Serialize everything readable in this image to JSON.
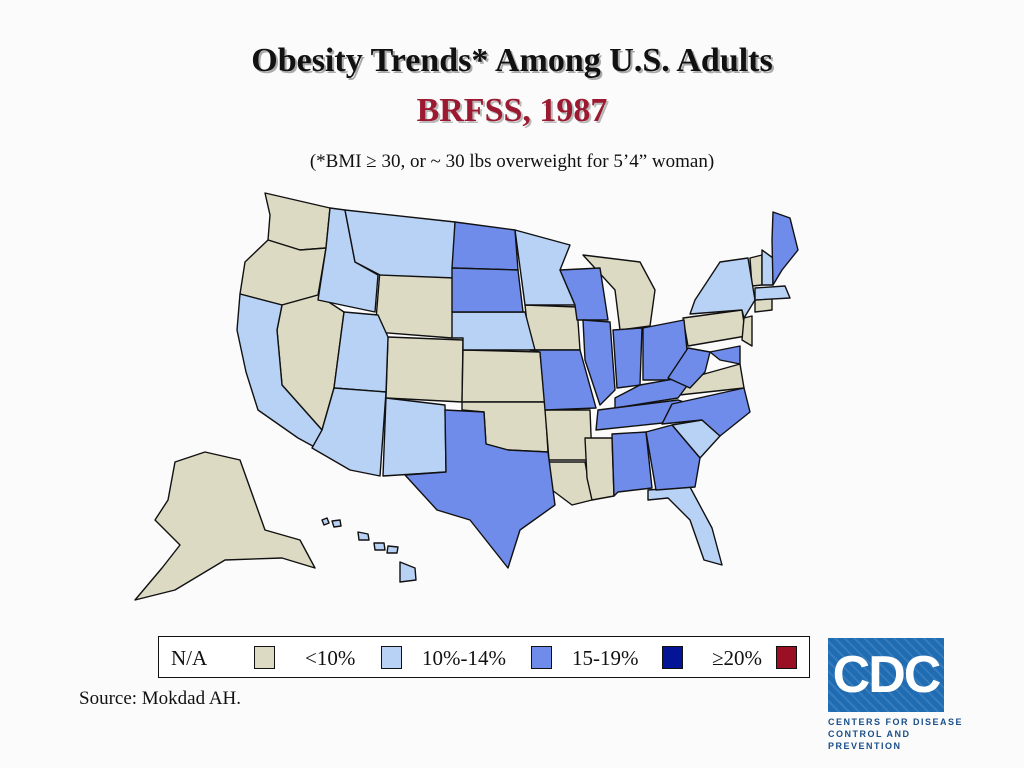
{
  "title": "Obesity Trends* Among U.S. Adults",
  "subtitle": "BRFSS, 1987",
  "note": "(*BMI ≥ 30, or ~ 30 lbs overweight for 5’4” woman)",
  "legend": [
    {
      "label": "N/A",
      "color": "#dcdac3"
    },
    {
      "label": "<10%",
      "color": "#b8d2f5"
    },
    {
      "label": "10%-14%",
      "color": "#6f8ceb"
    },
    {
      "label": "15-19%",
      "color": "#031496"
    },
    {
      "label": "≥20%",
      "color": "#9b0f25"
    }
  ],
  "source": "Source: Mokdad AH.",
  "logo": {
    "text": "CDC",
    "tagline_1": "Centers for Disease",
    "tagline_2": "Control and Prevention"
  }
}
